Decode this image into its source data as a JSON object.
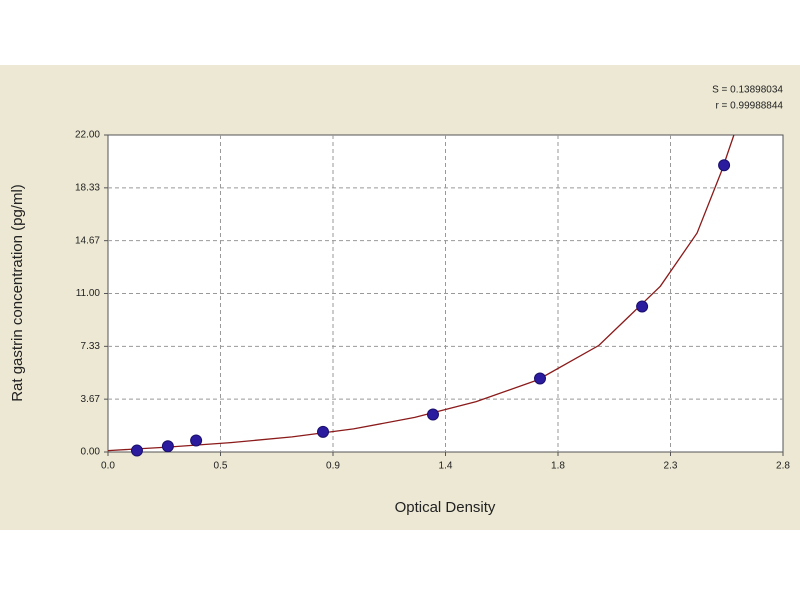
{
  "chart_data": {
    "type": "scatter",
    "x_label": "Optical Density",
    "y_label": "Rat gastrin concentration (pg/ml)",
    "annotations": [
      "S = 0.13898034",
      "r = 0.99988844"
    ],
    "x": [
      0.118,
      0.244,
      0.359,
      0.876,
      1.324,
      1.76,
      2.176,
      2.51
    ],
    "values": [
      0.1,
      0.4,
      0.8,
      1.4,
      2.6,
      5.1,
      10.1,
      19.9
    ],
    "color": "#2b1b9e",
    "fit": {
      "color": "#8b1a1a",
      "x": [
        0,
        0.25,
        0.5,
        0.75,
        1.0,
        1.25,
        1.5,
        1.75,
        2.0,
        2.25,
        2.4,
        2.5,
        2.55
      ],
      "values": [
        0.1,
        0.35,
        0.65,
        1.05,
        1.6,
        2.4,
        3.5,
        5.0,
        7.4,
        11.5,
        15.2,
        19.5,
        22.0
      ]
    },
    "xlim": [
      0,
      2.75
    ],
    "ylim": [
      0,
      22
    ],
    "xticks": [
      {
        "value": 0,
        "label": "0.0"
      },
      {
        "value": 0.4583,
        "label": "0.5"
      },
      {
        "value": 0.9167,
        "label": "0.9"
      },
      {
        "value": 1.375,
        "label": "1.4"
      },
      {
        "value": 1.8333,
        "label": "1.8"
      },
      {
        "value": 2.2917,
        "label": "2.3"
      },
      {
        "value": 2.75,
        "label": "2.8"
      }
    ],
    "yticks": [
      {
        "value": 0,
        "label": "0.00"
      },
      {
        "value": 3.667,
        "label": "3.67"
      },
      {
        "value": 7.333,
        "label": "7.33"
      },
      {
        "value": 11,
        "label": "11.00"
      },
      {
        "value": 14.667,
        "label": "14.67"
      },
      {
        "value": 18.333,
        "label": "18.33"
      },
      {
        "value": 22,
        "label": "22.00"
      }
    ],
    "grid": true
  }
}
